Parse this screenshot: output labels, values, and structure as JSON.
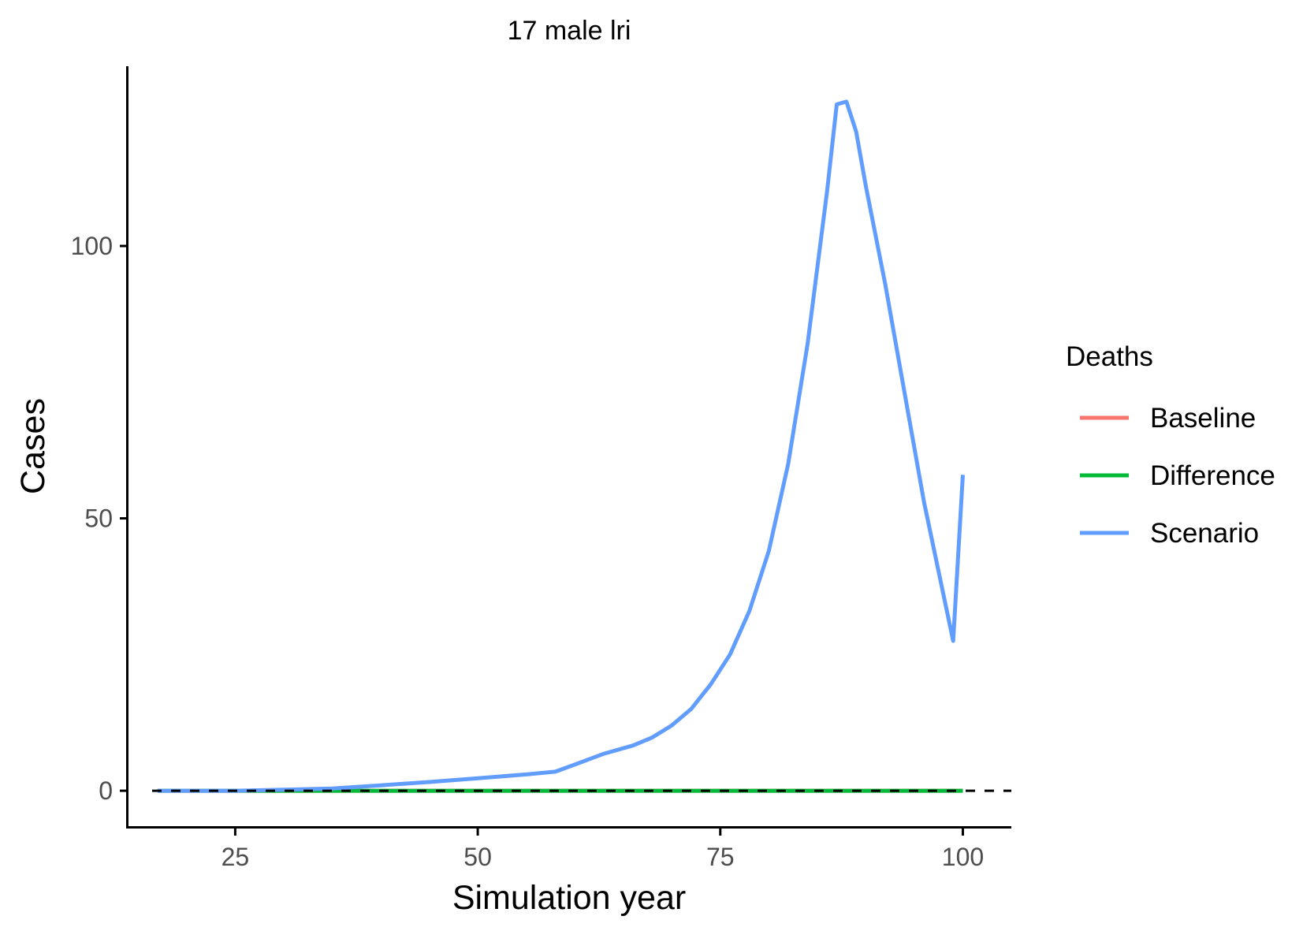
{
  "chart_data": {
    "type": "line",
    "title": "17 male lri",
    "xlabel": "Simulation year",
    "ylabel": "Cases",
    "xlim": [
      14,
      105
    ],
    "ylim": [
      -6.5,
      133
    ],
    "x_ticks": [
      25,
      50,
      75,
      100
    ],
    "y_ticks": [
      0,
      50,
      100
    ],
    "grid": false,
    "reference_line": {
      "y": 0,
      "style": "dashed",
      "color": "#000000"
    },
    "legend": {
      "title": "Deaths",
      "position": "right",
      "entries": [
        {
          "label": "Baseline",
          "color": "#F8766D"
        },
        {
          "label": "Difference",
          "color": "#00BA38"
        },
        {
          "label": "Scenario",
          "color": "#619CFF"
        }
      ]
    },
    "series": [
      {
        "name": "Baseline",
        "color": "#F8766D",
        "x": [
          17,
          25,
          30,
          35,
          40,
          45,
          50,
          55,
          58,
          60,
          63,
          66,
          68,
          70,
          72,
          74,
          76,
          78,
          80,
          82,
          84,
          86,
          87,
          88,
          89,
          90,
          92,
          94,
          96,
          99,
          100
        ],
        "y": [
          0,
          0,
          0,
          0,
          0,
          0,
          0,
          0,
          0,
          0,
          0,
          0,
          0,
          0,
          0,
          0,
          0,
          0,
          0,
          0,
          0,
          0,
          0,
          0,
          0,
          0,
          0,
          0,
          0,
          0,
          0
        ]
      },
      {
        "name": "Difference",
        "color": "#00BA38",
        "x": [
          17,
          25,
          30,
          35,
          40,
          45,
          50,
          55,
          58,
          60,
          63,
          66,
          68,
          70,
          72,
          74,
          76,
          78,
          80,
          82,
          84,
          86,
          87,
          88,
          89,
          90,
          92,
          94,
          96,
          99,
          100
        ],
        "y": [
          0,
          0,
          0,
          0,
          0,
          0,
          0,
          0,
          0,
          0,
          0,
          0,
          0,
          0,
          0,
          0,
          0,
          0,
          0,
          0,
          0,
          0,
          0,
          0,
          0,
          0,
          0,
          0,
          0,
          0,
          0
        ]
      },
      {
        "name": "Scenario",
        "color": "#619CFF",
        "x": [
          17,
          25,
          30,
          35,
          40,
          45,
          50,
          55,
          58,
          60,
          63,
          66,
          68,
          70,
          72,
          74,
          76,
          78,
          80,
          82,
          84,
          86,
          87,
          88,
          89,
          90,
          92,
          94,
          96,
          99,
          100
        ],
        "y": [
          0,
          0,
          0.2,
          0.4,
          1,
          1.6,
          2.3,
          3,
          3.5,
          4.8,
          6.8,
          8.3,
          9.8,
          12,
          15,
          19.5,
          25,
          33,
          44,
          60,
          82,
          110,
          126,
          126.5,
          121,
          111,
          93,
          73,
          53,
          27.5,
          58
        ]
      }
    ]
  }
}
